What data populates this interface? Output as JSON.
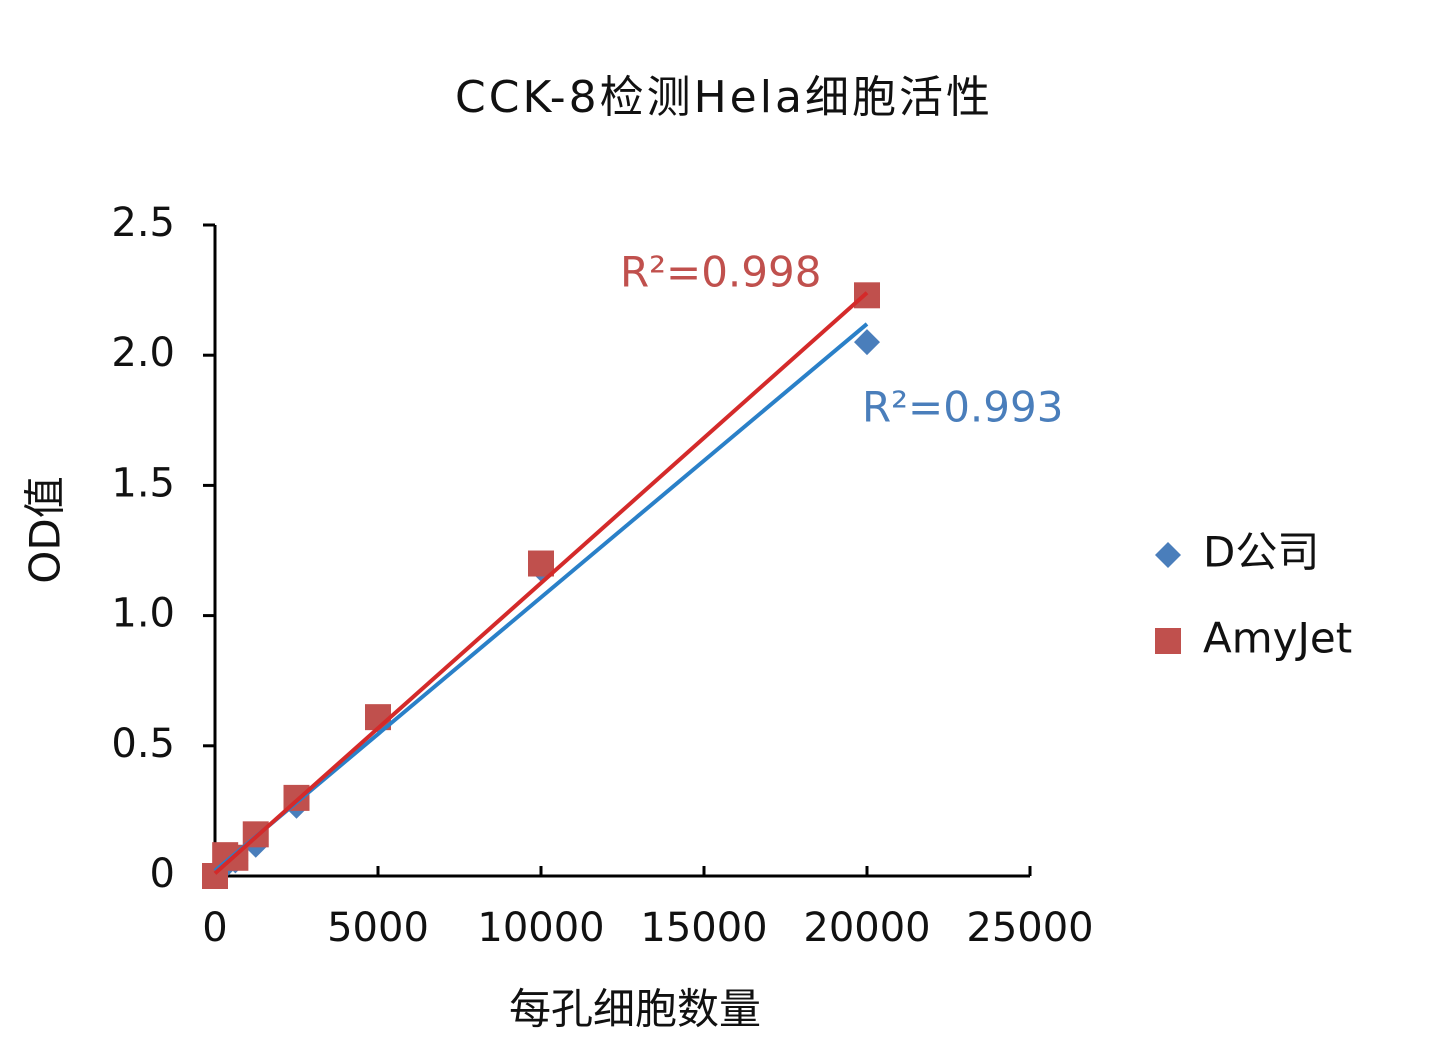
{
  "chart_data": {
    "type": "scatter",
    "title": "CCK-8检测Hela细胞活性",
    "x_label": "每孔细胞数量",
    "y_label": "OD值",
    "x": [
      0,
      312,
      625,
      1250,
      2500,
      5000,
      10000,
      20000
    ],
    "series": [
      {
        "name": "D公司",
        "color": "#4a7ebb",
        "marker": "diamond",
        "line_color": "#2a80c8",
        "values": [
          0.01,
          0.04,
          0.06,
          0.12,
          0.27,
          0.6,
          1.18,
          2.05
        ],
        "trend_x": [
          0,
          20000
        ],
        "trend_values": [
          0.02,
          2.12
        ]
      },
      {
        "name": "AmyJet",
        "color": "#c0504d",
        "marker": "square",
        "line_color": "#d42a2a",
        "values": [
          0,
          0.08,
          0.07,
          0.16,
          0.3,
          0.61,
          1.2,
          2.23
        ],
        "trend_x": [
          0,
          20000
        ],
        "trend_values": [
          0.01,
          2.24
        ]
      }
    ],
    "annotations": [
      {
        "text": "R²=0.998",
        "color": "#c0504d"
      },
      {
        "text": "R²=0.993",
        "color": "#4a7ebb"
      }
    ],
    "xlim": [
      0,
      25000
    ],
    "xticks": [
      0,
      5000,
      10000,
      15000,
      20000,
      25000
    ],
    "ylim": [
      0,
      2.5
    ],
    "yticks": [
      0,
      0.5,
      {
        "value": 1,
        "label": "1.0"
      },
      1.5,
      {
        "value": 2,
        "label": "2.0"
      },
      2.5
    ],
    "legend": "right",
    "grid": false
  }
}
